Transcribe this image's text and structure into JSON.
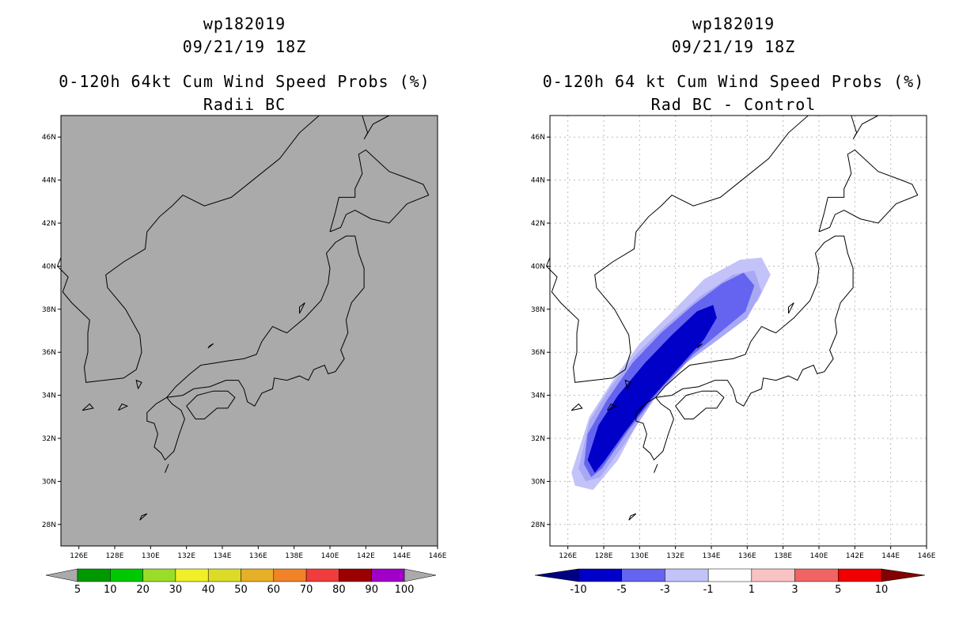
{
  "left": {
    "storm_id": "wp182019",
    "datetime": "09/21/19 18Z",
    "product": "0-120h 64kt Cum Wind Speed Probs (%)",
    "subtitle": "Radii BC",
    "background_fill": "#aaaaaa",
    "colorbar": {
      "labels": [
        "5",
        "10",
        "20",
        "30",
        "40",
        "50",
        "60",
        "70",
        "80",
        "90",
        "100"
      ],
      "colors": [
        "#009a00",
        "#00c800",
        "#9bdc28",
        "#f0f028",
        "#dcdc28",
        "#e6af28",
        "#f08228",
        "#f03c3c",
        "#9b0000",
        "#a000c8"
      ],
      "end_color": "#aaaaaa"
    }
  },
  "right": {
    "storm_id": "wp182019",
    "datetime": "09/21/19 18Z",
    "product": "0-120h 64 kt Cum Wind Speed Probs (%)",
    "subtitle": "Rad BC - Control",
    "colorbar": {
      "labels": [
        "-10",
        "-5",
        "-3",
        "-1",
        "1",
        "3",
        "5",
        "10"
      ],
      "colors": [
        "#0000c8",
        "#6464f0",
        "#c3c3fa",
        "#ffffff",
        "#fac3c3",
        "#f06464",
        "#f00000"
      ],
      "low_end_color": "#000082",
      "high_end_color": "#820000"
    }
  },
  "axes": {
    "lat_labels": [
      "46N",
      "44N",
      "42N",
      "40N",
      "38N",
      "36N",
      "34N",
      "32N",
      "30N",
      "28N"
    ],
    "lon_labels": [
      "126E",
      "128E",
      "130E",
      "132E",
      "134E",
      "136E",
      "138E",
      "140E",
      "142E",
      "144E",
      "146E"
    ],
    "lat_range": [
      27,
      47
    ],
    "lon_range": [
      125,
      146
    ]
  }
}
